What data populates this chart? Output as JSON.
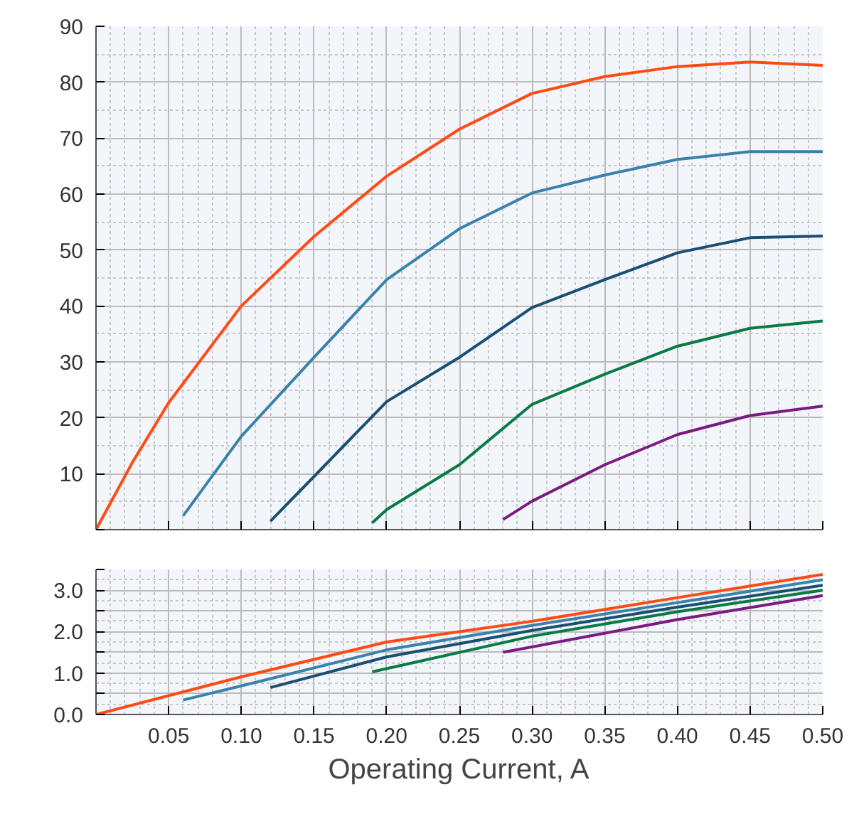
{
  "chart_data": [
    {
      "type": "line",
      "xlim": [
        0,
        0.5
      ],
      "ylim": [
        0,
        90
      ],
      "grid": true,
      "tick_labels": "y",
      "xticks": [
        {
          "value": 0,
          "label": null
        },
        {
          "value": 0.05,
          "label": null
        },
        {
          "value": 0.1,
          "label": null
        },
        {
          "value": 0.15,
          "label": null
        },
        {
          "value": 0.2,
          "label": null
        },
        {
          "value": 0.25,
          "label": null
        },
        {
          "value": 0.3,
          "label": null
        },
        {
          "value": 0.35,
          "label": null
        },
        {
          "value": 0.4,
          "label": null
        },
        {
          "value": 0.45,
          "label": null
        },
        {
          "value": 0.5,
          "label": null
        }
      ],
      "yticks": [
        {
          "value": 0,
          "label": null
        },
        10,
        20,
        30,
        40,
        50,
        60,
        70,
        80,
        90
      ],
      "series": [
        {
          "color": "#ff4a14",
          "x": [
            0,
            0.025,
            0.05,
            0.1,
            0.15,
            0.2,
            0.25,
            0.3,
            0.35,
            0.4,
            0.45,
            0.5
          ],
          "values": [
            0,
            12,
            22.7,
            40,
            52.4,
            63.2,
            71.6,
            78,
            81,
            82.8,
            83.6,
            83
          ]
        },
        {
          "color": "#3a82aa",
          "x": [
            0.06,
            0.1,
            0.15,
            0.2,
            0.25,
            0.3,
            0.35,
            0.4,
            0.45,
            0.5
          ],
          "values": [
            2.5,
            16.7,
            30.8,
            44.7,
            53.8,
            60.2,
            63.4,
            66.2,
            67.6,
            67.6
          ]
        },
        {
          "color": "#1a4f74",
          "x": [
            0.12,
            0.15,
            0.2,
            0.25,
            0.3,
            0.35,
            0.4,
            0.45,
            0.5
          ],
          "values": [
            1.5,
            9.5,
            22.9,
            30.8,
            39.7,
            44.7,
            49.5,
            52.2,
            52.5
          ]
        },
        {
          "color": "#0a7a45",
          "x": [
            0.19,
            0.2,
            0.25,
            0.3,
            0.35,
            0.4,
            0.45,
            0.5
          ],
          "values": [
            1.2,
            3.6,
            11.6,
            22.4,
            27.8,
            32.8,
            36,
            37.3
          ]
        },
        {
          "color": "#7b1a82",
          "x": [
            0.28,
            0.3,
            0.35,
            0.4,
            0.45,
            0.5
          ],
          "values": [
            1.8,
            5.1,
            11.6,
            17,
            20.4,
            22.1
          ]
        }
      ]
    },
    {
      "type": "line",
      "xlabel": "Operating Current, A",
      "xlim": [
        0,
        0.5
      ],
      "ylim": [
        0,
        3.5
      ],
      "grid": true,
      "xticks": [
        {
          "value": 0,
          "label": null
        },
        {
          "value": 0.05,
          "label": "0.05"
        },
        {
          "value": 0.1,
          "label": "0.10"
        },
        {
          "value": 0.15,
          "label": "0.15"
        },
        {
          "value": 0.2,
          "label": "0.20"
        },
        {
          "value": 0.25,
          "label": "0.25"
        },
        {
          "value": 0.3,
          "label": "0.30"
        },
        {
          "value": 0.35,
          "label": "0.35"
        },
        {
          "value": 0.4,
          "label": "0.40"
        },
        {
          "value": 0.45,
          "label": "0.45"
        },
        {
          "value": 0.5,
          "label": "0.50"
        }
      ],
      "yticks": [
        {
          "value": 0,
          "label": "0.0"
        },
        {
          "value": 0.5,
          "label": null
        },
        {
          "value": 1,
          "label": "1.0"
        },
        {
          "value": 1.5,
          "label": null
        },
        {
          "value": 2,
          "label": "2.0"
        },
        {
          "value": 2.5,
          "label": null
        },
        {
          "value": 3,
          "label": "3.0"
        },
        {
          "value": 3.5,
          "label": null
        }
      ],
      "series": [
        {
          "color": "#ff4a14",
          "x": [
            0,
            0.1,
            0.2,
            0.25,
            0.3,
            0.4,
            0.5
          ],
          "values": [
            0,
            0.91,
            1.75,
            2.0,
            2.25,
            2.82,
            3.38
          ]
        },
        {
          "color": "#3a82aa",
          "x": [
            0.06,
            0.1,
            0.2,
            0.3,
            0.4,
            0.5
          ],
          "values": [
            0.35,
            0.69,
            1.56,
            2.15,
            2.7,
            3.25
          ]
        },
        {
          "color": "#1a4f74",
          "x": [
            0.12,
            0.2,
            0.3,
            0.4,
            0.5
          ],
          "values": [
            0.65,
            1.39,
            2.03,
            2.59,
            3.12
          ]
        },
        {
          "color": "#0a7a45",
          "x": [
            0.19,
            0.3,
            0.4,
            0.5
          ],
          "values": [
            1.03,
            1.89,
            2.48,
            3.0
          ]
        },
        {
          "color": "#7b1a82",
          "x": [
            0.28,
            0.4,
            0.5
          ],
          "values": [
            1.5,
            2.29,
            2.87
          ]
        }
      ]
    }
  ]
}
